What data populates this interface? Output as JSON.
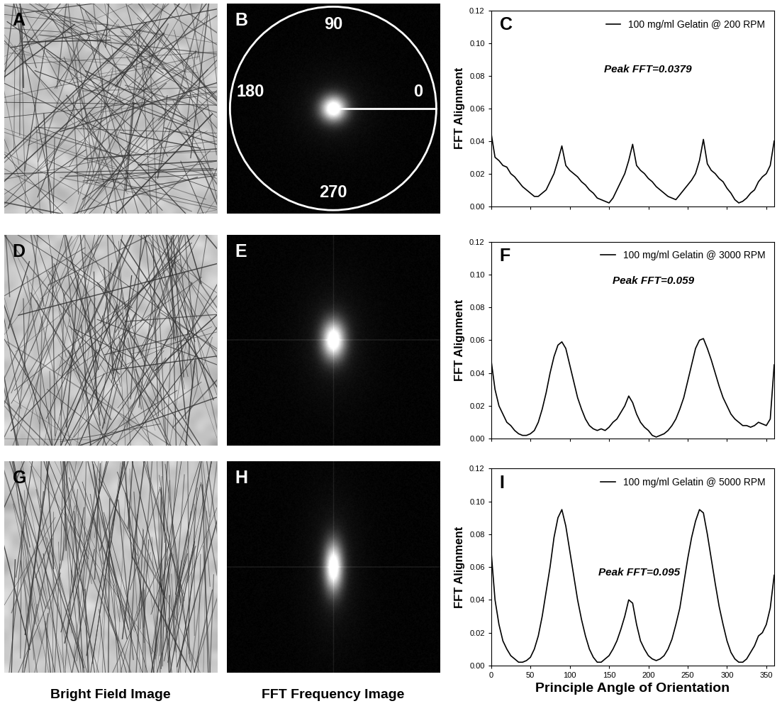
{
  "panels": {
    "bright_field": [
      "A",
      "D",
      "G"
    ],
    "fft": [
      "B",
      "E",
      "H"
    ]
  },
  "column_captions": [
    "Bright Field Image",
    "FFT Frequency Image"
  ],
  "fft_angle_labels": {
    "top": "90",
    "right": "0",
    "left": "180",
    "bottom": "270"
  },
  "chart_data": [
    {
      "type": "line",
      "panel_label": "C",
      "x": [
        0,
        5,
        10,
        15,
        20,
        25,
        30,
        35,
        40,
        45,
        50,
        55,
        60,
        65,
        70,
        75,
        80,
        85,
        90,
        95,
        100,
        105,
        110,
        115,
        120,
        125,
        130,
        135,
        140,
        145,
        150,
        155,
        160,
        165,
        170,
        175,
        180,
        185,
        190,
        195,
        200,
        205,
        210,
        215,
        220,
        225,
        230,
        235,
        240,
        245,
        250,
        255,
        260,
        265,
        270,
        275,
        280,
        285,
        290,
        295,
        300,
        305,
        310,
        315,
        320,
        325,
        330,
        335,
        340,
        345,
        350,
        355,
        360
      ],
      "series": [
        {
          "name": "100 mg/ml Gelatin @ 200 RPM",
          "color": "#000000",
          "values": [
            0.045,
            0.03,
            0.028,
            0.025,
            0.024,
            0.02,
            0.018,
            0.015,
            0.012,
            0.01,
            0.008,
            0.006,
            0.006,
            0.008,
            0.01,
            0.015,
            0.02,
            0.028,
            0.037,
            0.025,
            0.022,
            0.02,
            0.018,
            0.015,
            0.013,
            0.01,
            0.008,
            0.005,
            0.004,
            0.003,
            0.002,
            0.005,
            0.01,
            0.015,
            0.02,
            0.028,
            0.038,
            0.025,
            0.022,
            0.02,
            0.017,
            0.015,
            0.012,
            0.01,
            0.008,
            0.006,
            0.005,
            0.004,
            0.007,
            0.01,
            0.013,
            0.016,
            0.02,
            0.028,
            0.041,
            0.026,
            0.022,
            0.02,
            0.017,
            0.015,
            0.011,
            0.008,
            0.004,
            0.002,
            0.003,
            0.005,
            0.008,
            0.01,
            0.015,
            0.018,
            0.02,
            0.025,
            0.04
          ]
        }
      ],
      "annotations": [
        "Peak FFT=0.0379"
      ],
      "ylabel": "FFT Alignment",
      "xlim": [
        0,
        360
      ],
      "xticks": [
        0,
        50,
        100,
        150,
        200,
        250,
        300,
        350
      ],
      "ylim": [
        0,
        0.12
      ],
      "yticks": [
        {
          "value": 0,
          "label": "0.00"
        },
        0.02,
        0.04,
        0.06,
        0.08,
        {
          "value": 0.1,
          "label": "0.10"
        },
        0.12
      ],
      "legend": "upper right",
      "tick_labels": "y"
    },
    {
      "type": "line",
      "panel_label": "F",
      "x": [
        0,
        5,
        10,
        15,
        20,
        25,
        30,
        35,
        40,
        45,
        50,
        55,
        60,
        65,
        70,
        75,
        80,
        85,
        90,
        95,
        100,
        105,
        110,
        115,
        120,
        125,
        130,
        135,
        140,
        145,
        150,
        155,
        160,
        165,
        170,
        175,
        180,
        185,
        190,
        195,
        200,
        205,
        210,
        215,
        220,
        225,
        230,
        235,
        240,
        245,
        250,
        255,
        260,
        265,
        270,
        275,
        280,
        285,
        290,
        295,
        300,
        305,
        310,
        315,
        320,
        325,
        330,
        335,
        340,
        345,
        350,
        355,
        360
      ],
      "series": [
        {
          "name": "100 mg/ml Gelatin @ 3000 RPM",
          "color": "#000000",
          "values": [
            0.048,
            0.03,
            0.02,
            0.015,
            0.01,
            0.008,
            0.005,
            0.003,
            0.002,
            0.002,
            0.003,
            0.005,
            0.01,
            0.018,
            0.028,
            0.04,
            0.05,
            0.057,
            0.059,
            0.055,
            0.045,
            0.035,
            0.025,
            0.018,
            0.012,
            0.008,
            0.006,
            0.005,
            0.006,
            0.005,
            0.007,
            0.01,
            0.012,
            0.016,
            0.02,
            0.026,
            0.022,
            0.015,
            0.01,
            0.007,
            0.005,
            0.002,
            0.001,
            0.002,
            0.003,
            0.005,
            0.008,
            0.012,
            0.018,
            0.025,
            0.035,
            0.045,
            0.055,
            0.06,
            0.061,
            0.055,
            0.048,
            0.04,
            0.032,
            0.025,
            0.02,
            0.015,
            0.012,
            0.01,
            0.008,
            0.008,
            0.007,
            0.008,
            0.01,
            0.009,
            0.008,
            0.012,
            0.045
          ]
        }
      ],
      "annotations": [
        "Peak FFT=0.059"
      ],
      "ylabel": "FFT Alignment",
      "xlim": [
        0,
        360
      ],
      "xticks": [
        0,
        50,
        100,
        150,
        200,
        250,
        300,
        350
      ],
      "ylim": [
        0,
        0.12
      ],
      "yticks": [
        {
          "value": 0,
          "label": "0.00"
        },
        0.02,
        0.04,
        0.06,
        0.08,
        {
          "value": 0.1,
          "label": "0.10"
        },
        0.12
      ],
      "legend": "upper right",
      "tick_labels": "y"
    },
    {
      "type": "line",
      "panel_label": "I",
      "x": [
        0,
        5,
        10,
        15,
        20,
        25,
        30,
        35,
        40,
        45,
        50,
        55,
        60,
        65,
        70,
        75,
        80,
        85,
        90,
        95,
        100,
        105,
        110,
        115,
        120,
        125,
        130,
        135,
        140,
        145,
        150,
        155,
        160,
        165,
        170,
        175,
        180,
        185,
        190,
        195,
        200,
        205,
        210,
        215,
        220,
        225,
        230,
        235,
        240,
        245,
        250,
        255,
        260,
        265,
        270,
        275,
        280,
        285,
        290,
        295,
        300,
        305,
        310,
        315,
        320,
        325,
        330,
        335,
        340,
        345,
        350,
        355,
        360
      ],
      "series": [
        {
          "name": "100 mg/ml Gelatin @ 5000 RPM",
          "color": "#000000",
          "values": [
            0.07,
            0.04,
            0.025,
            0.015,
            0.01,
            0.006,
            0.004,
            0.002,
            0.002,
            0.003,
            0.005,
            0.01,
            0.018,
            0.03,
            0.045,
            0.06,
            0.078,
            0.09,
            0.095,
            0.085,
            0.07,
            0.055,
            0.04,
            0.028,
            0.018,
            0.01,
            0.005,
            0.002,
            0.002,
            0.004,
            0.006,
            0.01,
            0.015,
            0.022,
            0.03,
            0.04,
            0.038,
            0.025,
            0.015,
            0.01,
            0.006,
            0.004,
            0.003,
            0.004,
            0.006,
            0.01,
            0.016,
            0.025,
            0.035,
            0.05,
            0.065,
            0.078,
            0.088,
            0.095,
            0.093,
            0.08,
            0.065,
            0.05,
            0.036,
            0.025,
            0.015,
            0.008,
            0.004,
            0.002,
            0.002,
            0.004,
            0.008,
            0.012,
            0.018,
            0.02,
            0.025,
            0.035,
            0.055
          ]
        }
      ],
      "annotations": [
        "Peak FFT=0.095"
      ],
      "ylabel": "FFT Alignment",
      "xlabel": "Principle Angle of Orientation",
      "xlim": [
        0,
        360
      ],
      "xticks": [
        0,
        50,
        100,
        150,
        200,
        250,
        300,
        350
      ],
      "ylim": [
        0,
        0.12
      ],
      "yticks": [
        {
          "value": 0,
          "label": "0.00"
        },
        0.02,
        0.04,
        0.06,
        0.08,
        {
          "value": 0.1,
          "label": "0.10"
        },
        0.12
      ],
      "legend": "upper right"
    }
  ]
}
